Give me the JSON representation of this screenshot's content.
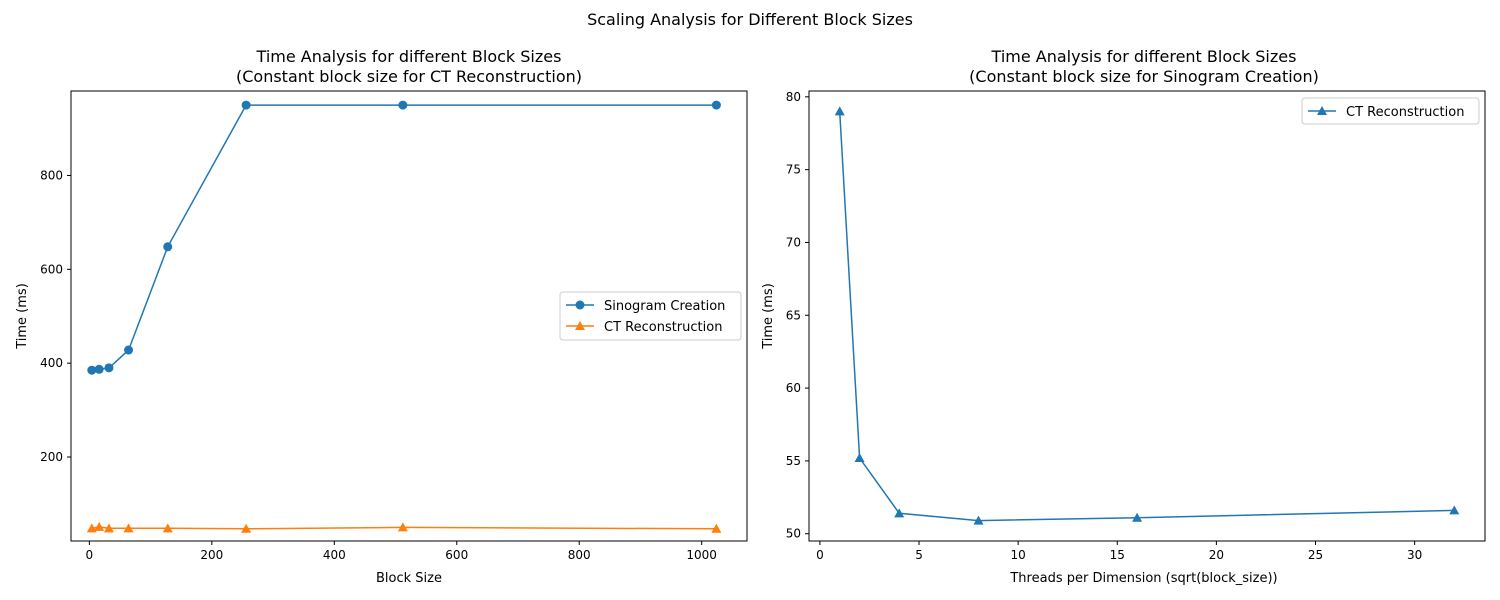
{
  "figure": {
    "suptitle": "Scaling Analysis for Different Block Sizes"
  },
  "chart_data": [
    {
      "type": "line",
      "title_line1": "Time Analysis for different Block Sizes",
      "title_line2": "(Constant block size for CT Reconstruction)",
      "xlabel": "Block Size",
      "ylabel": "Time (ms)",
      "xlim": [
        -30,
        1074
      ],
      "ylim": [
        21,
        980
      ],
      "xticks": [
        0,
        200,
        400,
        600,
        800,
        1000
      ],
      "yticks": [
        200,
        400,
        600,
        800
      ],
      "grid": false,
      "legend_position": "center-right",
      "series": [
        {
          "name": "Sinogram Creation",
          "color": "#1f77b4",
          "marker": "circle",
          "x": [
            4,
            16,
            32,
            64,
            128,
            256,
            512,
            1024
          ],
          "y": [
            385,
            387,
            390,
            428,
            648,
            950,
            950,
            950
          ]
        },
        {
          "name": "CT Reconstruction",
          "color": "#ff7f0e",
          "marker": "triangle",
          "x": [
            4,
            16,
            32,
            64,
            128,
            256,
            512,
            1024
          ],
          "y": [
            48,
            51,
            48,
            48,
            48,
            47,
            50,
            47
          ]
        }
      ]
    },
    {
      "type": "line",
      "title_line1": "Time Analysis for different Block Sizes",
      "title_line2": "(Constant block size for Sinogram Creation)",
      "xlabel": "Threads per Dimension (sqrt(block_size))",
      "ylabel": "Time (ms)",
      "xlim": [
        -0.55,
        33.55
      ],
      "ylim": [
        49.5,
        80.4
      ],
      "xticks": [
        0,
        5,
        10,
        15,
        20,
        25,
        30
      ],
      "yticks": [
        50,
        55,
        60,
        65,
        70,
        75,
        80
      ],
      "grid": false,
      "legend_position": "top-right",
      "series": [
        {
          "name": "CT Reconstruction",
          "color": "#1f77b4",
          "marker": "triangle",
          "x": [
            1,
            2,
            4,
            8,
            16,
            32
          ],
          "y": [
            79.0,
            55.2,
            51.4,
            50.9,
            51.1,
            51.6
          ]
        }
      ]
    }
  ]
}
